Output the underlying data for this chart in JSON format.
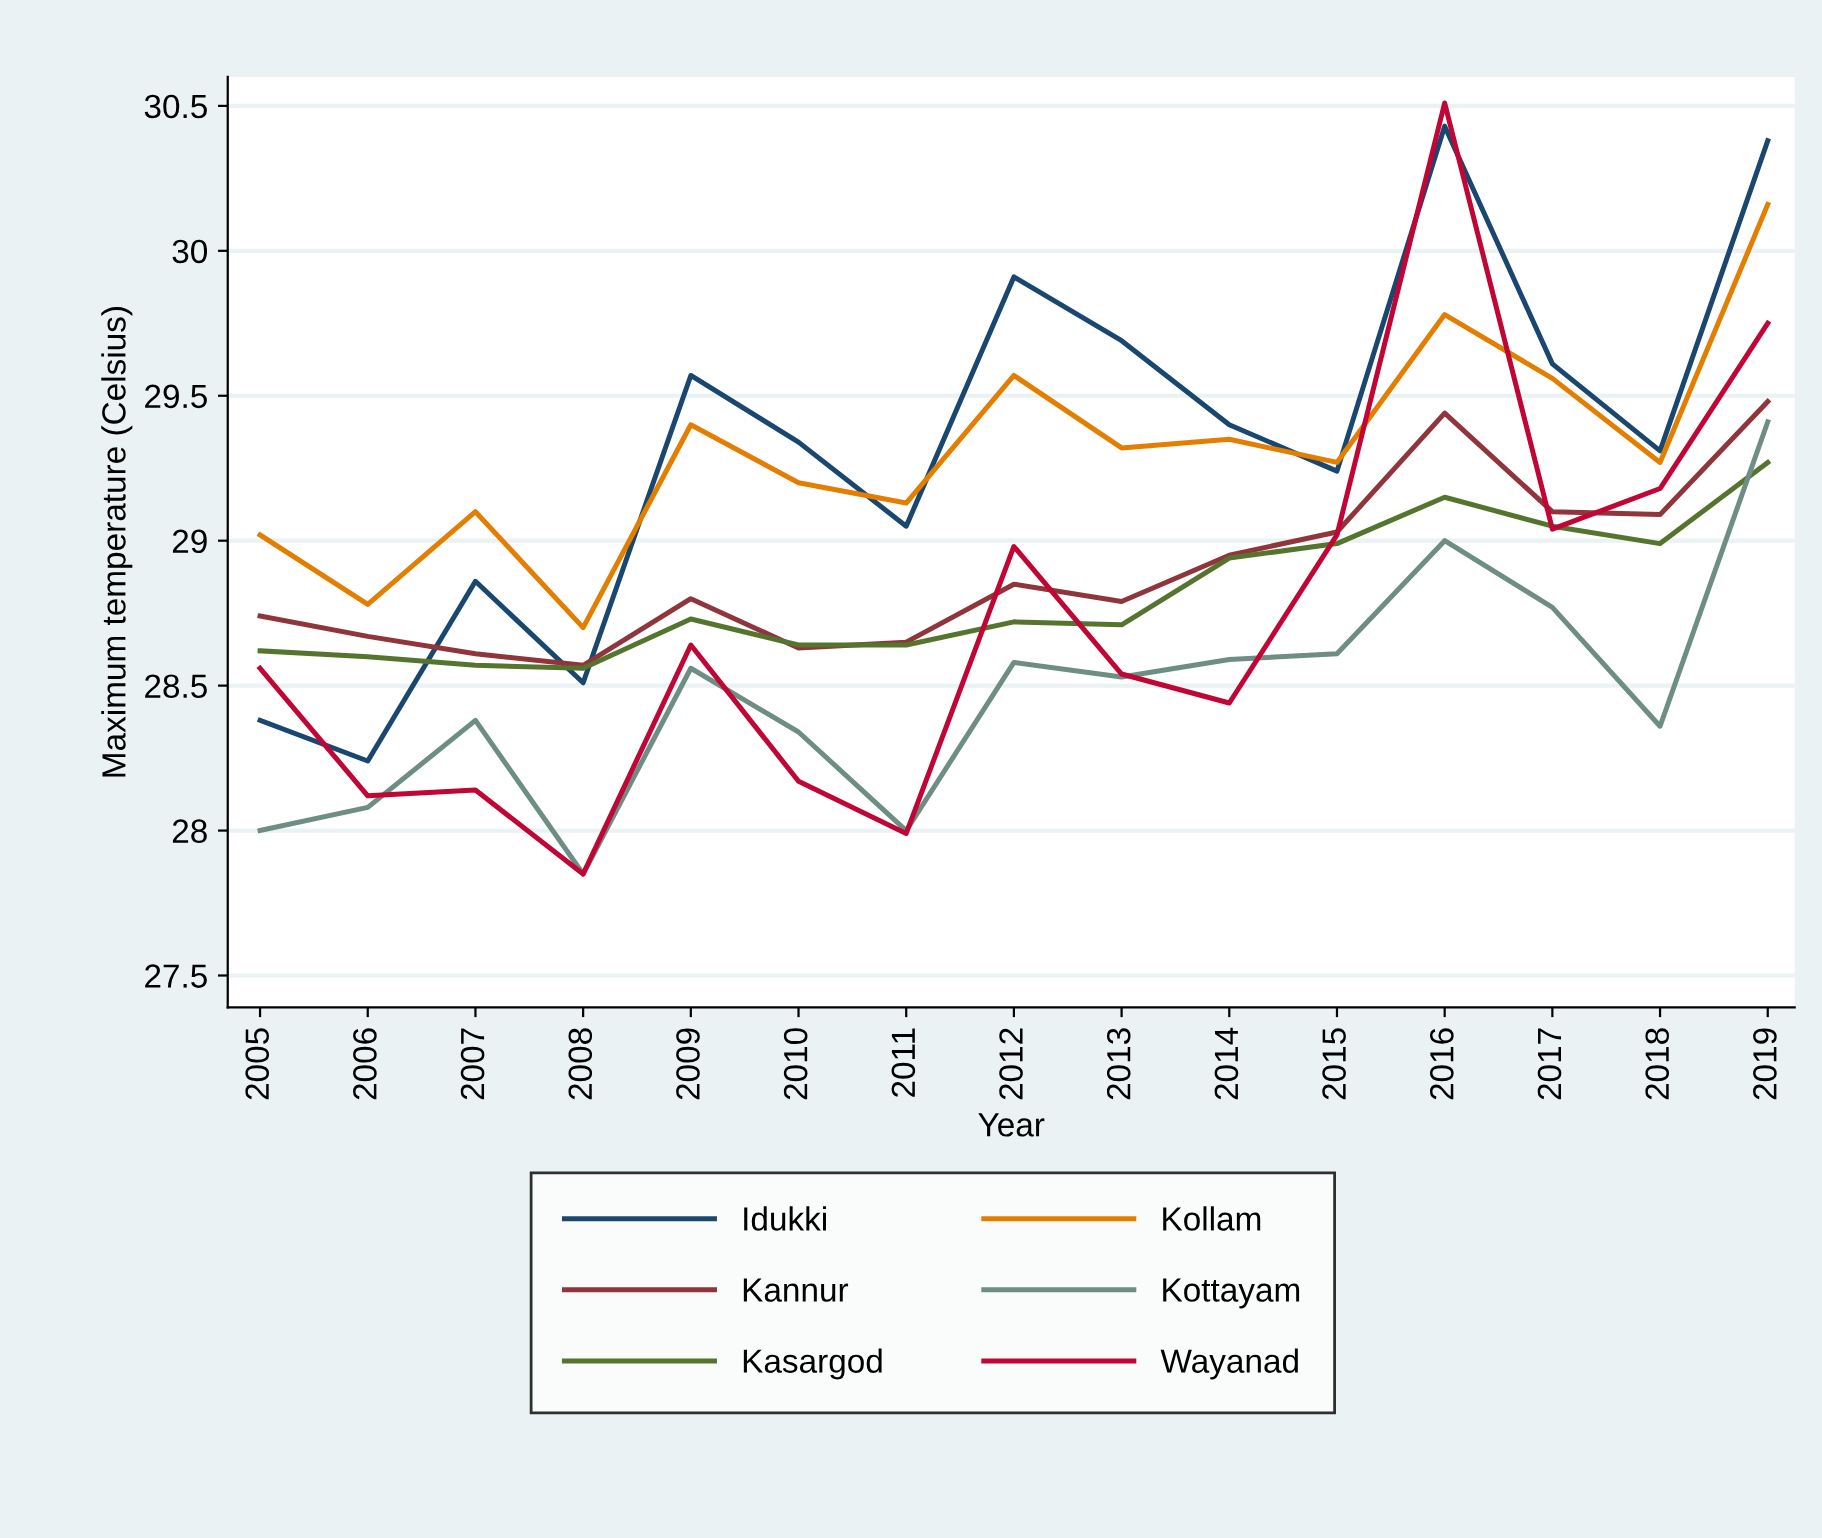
{
  "chart_data": {
    "type": "line",
    "xlabel": "Year",
    "ylabel": "Maximum temperature (Celsius)",
    "categories": [
      "2005",
      "2006",
      "2007",
      "2008",
      "2009",
      "2010",
      "2011",
      "2012",
      "2013",
      "2014",
      "2015",
      "2016",
      "2017",
      "2018",
      "2019"
    ],
    "series": [
      {
        "name": "Idukki",
        "color": "#1a476f",
        "values": [
          28.38,
          28.24,
          28.86,
          28.51,
          29.57,
          29.34,
          29.05,
          29.91,
          29.69,
          29.4,
          29.24,
          30.43,
          29.61,
          29.31,
          30.38
        ]
      },
      {
        "name": "Kannur",
        "color": "#90353b",
        "values": [
          28.74,
          28.67,
          28.61,
          28.57,
          28.8,
          28.63,
          28.65,
          28.85,
          28.79,
          28.95,
          29.03,
          29.44,
          29.1,
          29.09,
          29.48
        ]
      },
      {
        "name": "Kasargod",
        "color": "#55752f",
        "values": [
          28.62,
          28.6,
          28.57,
          28.56,
          28.73,
          28.64,
          28.64,
          28.72,
          28.71,
          28.94,
          28.99,
          29.15,
          29.05,
          28.99,
          29.27
        ]
      },
      {
        "name": "Kollam",
        "color": "#e37e00",
        "values": [
          29.02,
          28.78,
          29.1,
          28.7,
          29.4,
          29.2,
          29.13,
          29.57,
          29.32,
          29.35,
          29.27,
          29.78,
          29.56,
          29.27,
          30.16
        ]
      },
      {
        "name": "Kottayam",
        "color": "#6e8e84",
        "values": [
          28.0,
          28.08,
          28.38,
          27.85,
          28.56,
          28.34,
          28.0,
          28.58,
          28.53,
          28.59,
          28.61,
          29.0,
          28.77,
          28.36,
          29.41
        ]
      },
      {
        "name": "Wayanad",
        "color": "#c10534",
        "values": [
          28.56,
          28.12,
          28.14,
          27.85,
          28.64,
          28.17,
          27.99,
          28.98,
          28.54,
          28.44,
          29.02,
          30.51,
          29.04,
          29.18,
          29.75
        ]
      }
    ],
    "ylim": [
      27.39,
      30.6
    ],
    "yticks": [
      27.5,
      28,
      28.5,
      29,
      29.5,
      30,
      30.5
    ],
    "grid": "y",
    "legend": "bottom",
    "marker": "none",
    "line_style": "solid"
  }
}
